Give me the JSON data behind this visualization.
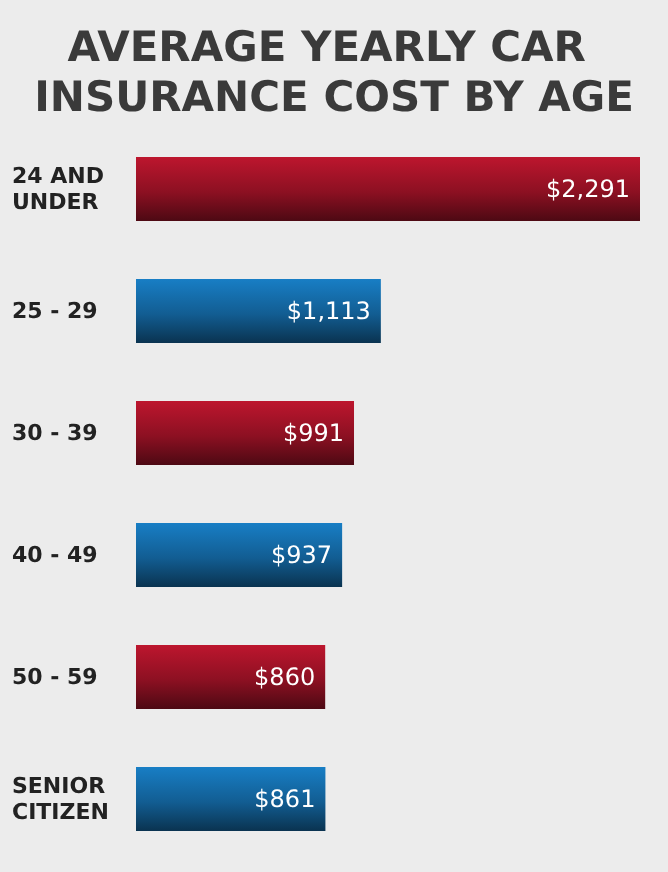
{
  "chart_data": {
    "type": "bar",
    "orientation": "horizontal",
    "title": "AVERAGE YEARLY CAR INSURANCE COST BY AGE",
    "categories": [
      "24 AND UNDER",
      "25 - 29",
      "30 - 39",
      "40 - 49",
      "50 - 59",
      "SENIOR CITIZEN"
    ],
    "values": [
      2291,
      1113,
      991,
      937,
      860,
      861
    ],
    "value_labels": [
      "$2,291",
      "$1,113",
      "$991",
      "$937",
      "$860",
      "$861"
    ],
    "colors": [
      "#8c1022",
      "#125d92",
      "#8c1022",
      "#125d92",
      "#8c1022",
      "#125d92"
    ]
  }
}
